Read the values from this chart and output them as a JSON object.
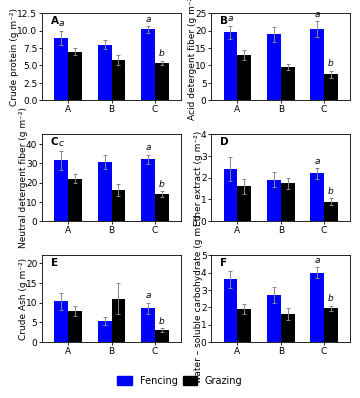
{
  "panels": [
    {
      "label": "A",
      "ylabel": "Crude protein (g m⁻²)",
      "ylim": [
        0,
        12.5
      ],
      "yticks": [
        0,
        2.5,
        5.0,
        7.5,
        10.0,
        12.5
      ],
      "ytick_labels": [
        "0.0",
        "2.5",
        "5.0",
        "7.5",
        "10.0",
        "12.5"
      ],
      "fencing": [
        9.0,
        8.0,
        10.2
      ],
      "grazing": [
        7.0,
        5.8,
        5.4
      ],
      "fencing_err": [
        1.0,
        0.6,
        0.5
      ],
      "grazing_err": [
        0.5,
        0.7,
        0.3
      ],
      "sig_fencing": [
        "",
        "",
        "a"
      ],
      "sig_grazing": [
        "",
        "",
        "b"
      ],
      "sig_left": [
        "a",
        "",
        ""
      ]
    },
    {
      "label": "B",
      "ylabel": "Acid detergent fiber (g m⁻²)",
      "ylim": [
        0,
        25
      ],
      "yticks": [
        0,
        5,
        10,
        15,
        20,
        25
      ],
      "ytick_labels": [
        "0",
        "5",
        "10",
        "15",
        "20",
        "25"
      ],
      "fencing": [
        19.5,
        19.0,
        20.5
      ],
      "grazing": [
        13.0,
        9.5,
        7.5
      ],
      "fencing_err": [
        2.0,
        2.2,
        2.2
      ],
      "grazing_err": [
        1.5,
        0.8,
        1.0
      ],
      "sig_fencing": [
        "",
        "",
        "a"
      ],
      "sig_grazing": [
        "",
        "",
        "b"
      ],
      "sig_left": [
        "a",
        "",
        ""
      ]
    },
    {
      "label": "C",
      "ylabel": "Neutral detergent fiber (g m⁻²)",
      "ylim": [
        0,
        45
      ],
      "yticks": [
        0,
        10,
        20,
        30,
        40
      ],
      "ytick_labels": [
        "0",
        "10",
        "20",
        "30",
        "40"
      ],
      "fencing": [
        31.5,
        30.5,
        32.0
      ],
      "grazing": [
        22.0,
        16.0,
        14.0
      ],
      "fencing_err": [
        5.0,
        3.5,
        2.5
      ],
      "grazing_err": [
        2.5,
        3.0,
        1.5
      ],
      "sig_fencing": [
        "",
        "",
        "a"
      ],
      "sig_grazing": [
        "",
        "",
        "b"
      ],
      "sig_left": [
        "c",
        "",
        ""
      ]
    },
    {
      "label": "D",
      "ylabel": "Ether extract (g m⁻²)",
      "ylim": [
        0,
        4
      ],
      "yticks": [
        0,
        1,
        2,
        3,
        4
      ],
      "ytick_labels": [
        "0",
        "1",
        "2",
        "3",
        "4"
      ],
      "fencing": [
        2.4,
        1.9,
        2.2
      ],
      "grazing": [
        1.6,
        1.75,
        0.9
      ],
      "fencing_err": [
        0.55,
        0.35,
        0.25
      ],
      "grazing_err": [
        0.35,
        0.25,
        0.15
      ],
      "sig_fencing": [
        "",
        "",
        "a"
      ],
      "sig_grazing": [
        "",
        "",
        "b"
      ],
      "sig_left": [
        "",
        "",
        ""
      ]
    },
    {
      "label": "E",
      "ylabel": "Crude Ash (g m⁻²)",
      "ylim": [
        0,
        22
      ],
      "yticks": [
        0,
        5,
        10,
        15,
        20
      ],
      "ytick_labels": [
        "0",
        "5",
        "10",
        "15",
        "20"
      ],
      "fencing": [
        10.3,
        5.4,
        8.5
      ],
      "grazing": [
        7.9,
        11.0,
        3.0
      ],
      "fencing_err": [
        2.2,
        1.0,
        1.5
      ],
      "grazing_err": [
        1.2,
        4.0,
        0.5
      ],
      "sig_fencing": [
        "",
        "",
        "a"
      ],
      "sig_grazing": [
        "",
        "",
        "b"
      ],
      "sig_left": [
        "",
        "",
        ""
      ]
    },
    {
      "label": "F",
      "ylabel": "water – soluble carbohydrate (g m⁻²)",
      "ylim": [
        0,
        5
      ],
      "yticks": [
        0,
        1,
        2,
        3,
        4,
        5
      ],
      "ytick_labels": [
        "0",
        "1",
        "2",
        "3",
        "4",
        "5"
      ],
      "fencing": [
        3.6,
        2.7,
        4.0
      ],
      "grazing": [
        1.9,
        1.6,
        1.95
      ],
      "fencing_err": [
        0.5,
        0.45,
        0.3
      ],
      "grazing_err": [
        0.3,
        0.35,
        0.15
      ],
      "sig_fencing": [
        "",
        "",
        "a"
      ],
      "sig_grazing": [
        "",
        "",
        "b"
      ],
      "sig_left": [
        "",
        "",
        ""
      ]
    }
  ],
  "categories": [
    "A",
    "B",
    "C"
  ],
  "fencing_color": "#0000FF",
  "grazing_color": "#000000",
  "bar_width": 0.32,
  "legend_labels": [
    "Fencing",
    "Grazing"
  ],
  "background_color": "#ffffff",
  "font_size": 6.5,
  "panel_fontsize": 7.5
}
